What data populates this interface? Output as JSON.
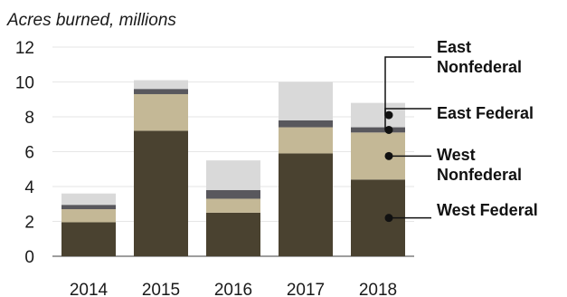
{
  "chart_data": {
    "type": "bar",
    "stacked": true,
    "ylabel": "Acres burned, millions",
    "ylim": [
      0,
      12
    ],
    "yticks": [
      0,
      2,
      4,
      6,
      8,
      10,
      12
    ],
    "grid": true,
    "categories": [
      "2014",
      "2015",
      "2016",
      "2017",
      "2018"
    ],
    "series": [
      {
        "name": "West Federal",
        "values": [
          1.95,
          7.2,
          2.5,
          5.9,
          4.4
        ],
        "color": "#4a4230"
      },
      {
        "name": "West Nonfederal",
        "values": [
          0.75,
          2.1,
          0.8,
          1.5,
          2.7
        ],
        "color": "#c4b896"
      },
      {
        "name": "East Federal",
        "values": [
          0.25,
          0.3,
          0.5,
          0.4,
          0.3
        ],
        "color": "#59585d"
      },
      {
        "name": "East Nonfederal",
        "values": [
          0.65,
          0.5,
          1.7,
          2.2,
          1.4
        ],
        "color": "#d9d9d9"
      }
    ],
    "legend": [
      {
        "label": "East Nonfederal",
        "lines": [
          "East",
          "Nonfederal"
        ],
        "series": 3
      },
      {
        "label": "East Federal",
        "lines": [
          "East Federal"
        ],
        "series": 2
      },
      {
        "label": "West Nonfederal",
        "lines": [
          "West",
          "Nonfederal"
        ],
        "series": 1
      },
      {
        "label": "West Federal",
        "lines": [
          "West Federal"
        ],
        "series": 0
      }
    ]
  }
}
